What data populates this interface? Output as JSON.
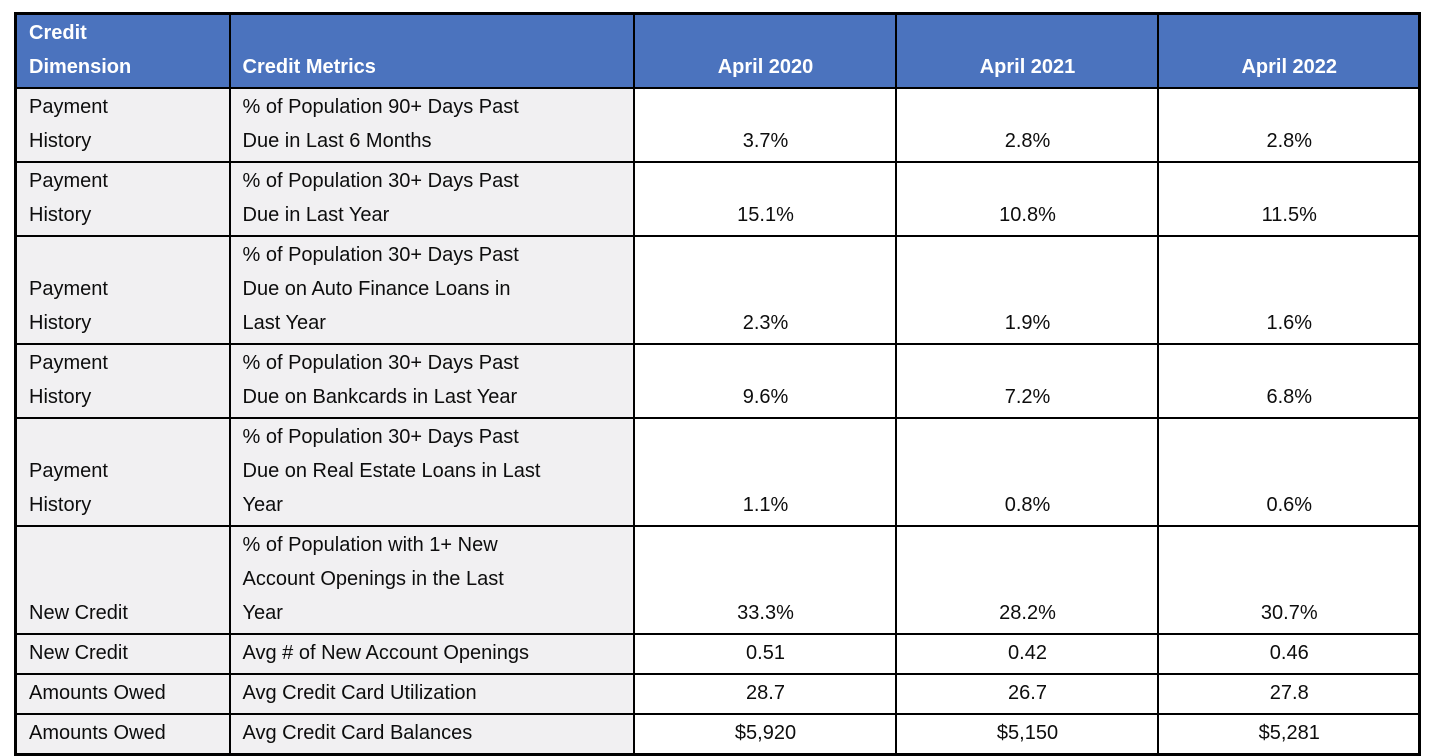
{
  "chart_data": {
    "type": "table",
    "columns": [
      "Credit Dimension",
      "Credit Metrics",
      "April 2020",
      "April 2021",
      "April 2022"
    ],
    "rows": [
      {
        "dimension": "Payment History",
        "metric": "% of Population 90+ Days Past Due in Last 6 Months",
        "values": [
          "3.7%",
          "2.8%",
          "2.8%"
        ]
      },
      {
        "dimension": "Payment History",
        "metric": "% of Population 30+ Days Past Due in Last Year",
        "values": [
          "15.1%",
          "10.8%",
          "11.5%"
        ]
      },
      {
        "dimension": "Payment History",
        "metric": "% of Population 30+ Days Past Due on Auto Finance Loans in Last Year",
        "values": [
          "2.3%",
          "1.9%",
          "1.6%"
        ]
      },
      {
        "dimension": "Payment History",
        "metric": "% of Population 30+ Days Past Due on Bankcards in Last Year",
        "values": [
          "9.6%",
          "7.2%",
          "6.8%"
        ]
      },
      {
        "dimension": "Payment History",
        "metric": "% of Population 30+ Days Past Due on Real Estate Loans in Last Year",
        "values": [
          "1.1%",
          "0.8%",
          "0.6%"
        ]
      },
      {
        "dimension": "New Credit",
        "metric": "% of Population with 1+ New Account Openings in the Last Year",
        "values": [
          "33.3%",
          "28.2%",
          "30.7%"
        ]
      },
      {
        "dimension": "New Credit",
        "metric": "Avg # of New Account Openings",
        "values": [
          "0.51",
          "0.42",
          "0.46"
        ]
      },
      {
        "dimension": "Amounts Owed",
        "metric": "Avg Credit Card Utilization",
        "values": [
          "28.7",
          "26.7",
          "27.8"
        ]
      },
      {
        "dimension": "Amounts Owed",
        "metric": "Avg Credit Card Balances",
        "values": [
          "$5,920",
          "$5,150",
          "$5,281"
        ]
      }
    ],
    "layout": {
      "header_alignment": [
        "left",
        "left",
        "center",
        "center",
        "center"
      ],
      "body_alignment": [
        "left",
        "left",
        "center",
        "center",
        "center"
      ],
      "vertical_alignment": "bottom",
      "grid": "all-borders"
    }
  },
  "colors": {
    "header_bg": "#4B73BE",
    "header_text": "#FFFFFF",
    "label_column_bg": "#F1F0F2",
    "value_column_bg": "#FFFFFF",
    "border": "#000000",
    "body_text": "#0D0D0D"
  }
}
